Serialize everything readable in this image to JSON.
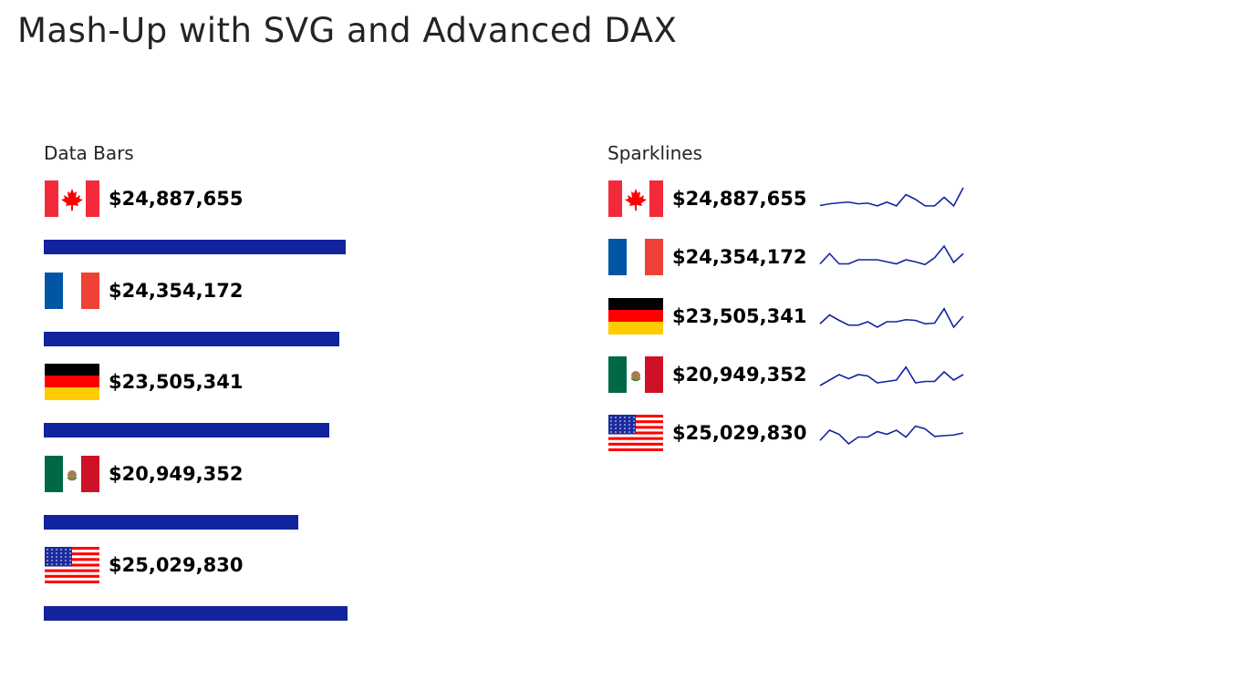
{
  "title": "Mash-Up with SVG and Advanced DAX",
  "bar_color": "#12239E",
  "data_bars": {
    "label": "Data Bars"
  },
  "sparklines": {
    "label": "Sparklines"
  },
  "countries": [
    {
      "name": "Canada",
      "flag": "canada-flag",
      "amount": "$24,887,655",
      "value": 24887655,
      "trend": [
        12,
        17,
        20,
        22,
        17,
        19,
        11,
        22,
        11,
        44,
        30,
        11,
        11,
        36,
        11,
        64
      ]
    },
    {
      "name": "France",
      "flag": "france-flag",
      "amount": "$24,354,172",
      "value": 24354172,
      "trend": [
        12,
        42,
        12,
        12,
        24,
        24,
        24,
        18,
        12,
        24,
        18,
        10,
        30,
        64,
        16,
        42
      ]
    },
    {
      "name": "Germany",
      "flag": "germany-flag",
      "amount": "$23,505,341",
      "value": 23505341,
      "trend": [
        10,
        36,
        20,
        6,
        6,
        16,
        0,
        16,
        16,
        22,
        20,
        10,
        12,
        54,
        0,
        32
      ]
    },
    {
      "name": "Mexico",
      "flag": "mexico-flag",
      "amount": "$20,949,352",
      "value": 20949352,
      "trend": [
        0,
        16,
        32,
        20,
        32,
        28,
        8,
        12,
        16,
        54,
        8,
        12,
        12,
        40,
        16,
        32
      ]
    },
    {
      "name": "United States",
      "flag": "usa-flag",
      "amount": "$25,029,830",
      "value": 25029830,
      "trend": [
        10,
        40,
        28,
        0,
        20,
        20,
        36,
        28,
        40,
        20,
        52,
        44,
        22,
        24,
        26,
        32
      ]
    }
  ]
}
